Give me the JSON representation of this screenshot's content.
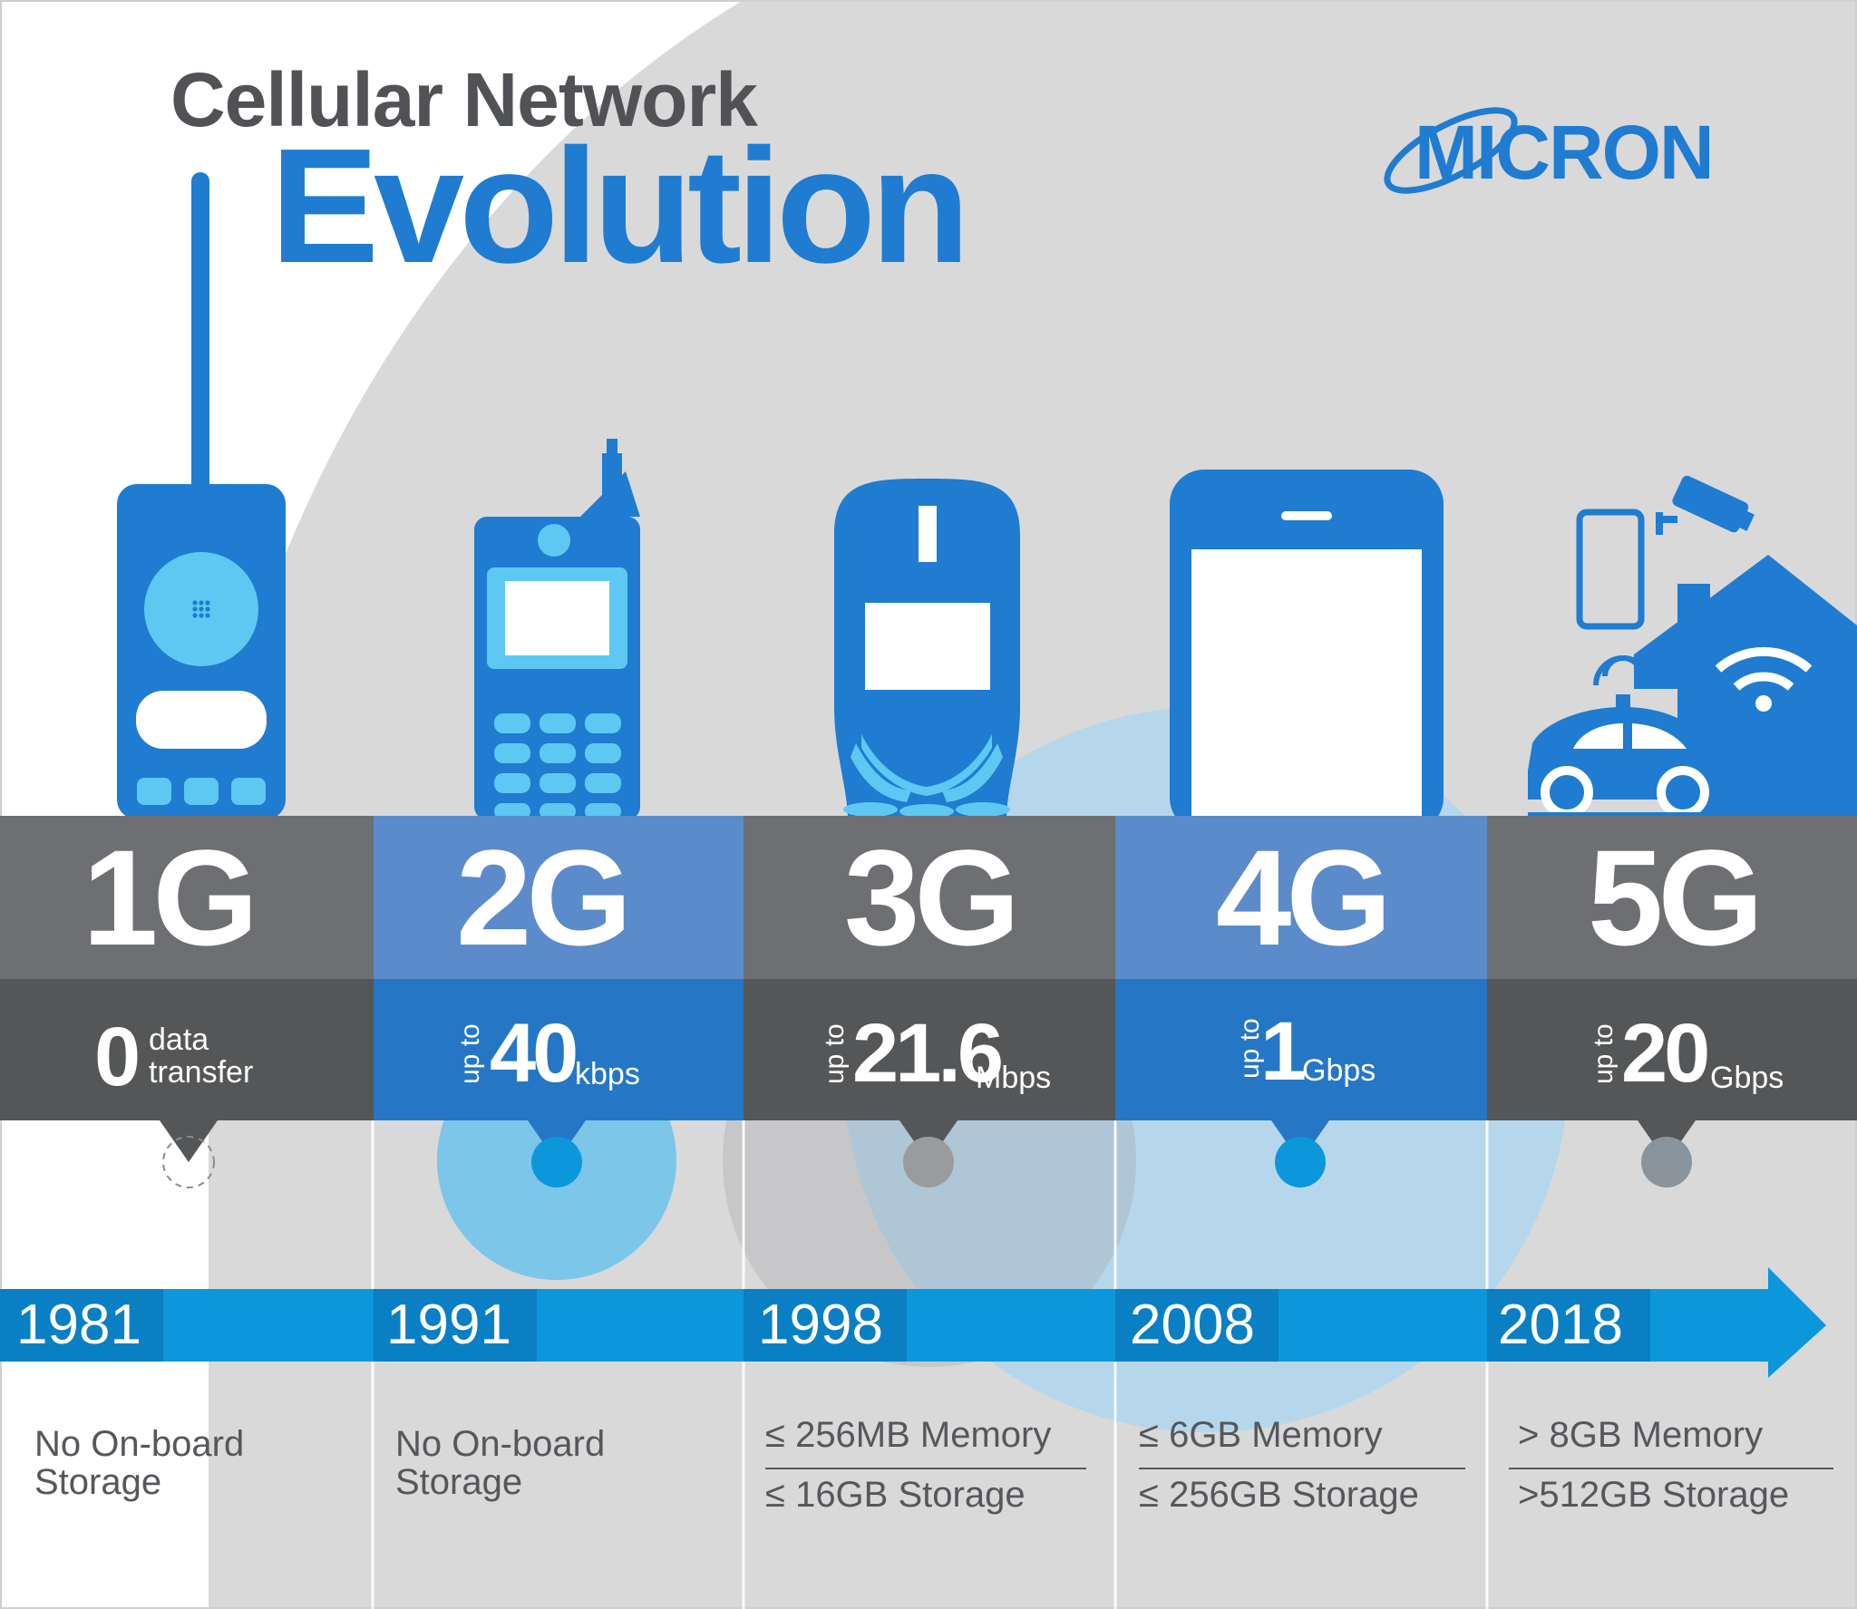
{
  "title": {
    "line1": "Cellular Network",
    "line2": "Evolution"
  },
  "logo": {
    "text": "MICRON",
    "color": "#1f7cd0"
  },
  "colors": {
    "blue_dark": "#1f7cd0",
    "blue_light": "#5ec8f2",
    "blue_timeline": "#0d97db",
    "gray_header": "#6e6f72",
    "gray_dark": "#555657",
    "background": "#d9d9da"
  },
  "generations": [
    {
      "id": "1G",
      "label": "1G",
      "speed_prefix": "",
      "speed_value": "0",
      "speed_unit_line1": "data",
      "speed_unit_line2": "transfer",
      "year": "1981",
      "storage_lines": [
        "No On-board",
        "Storage"
      ],
      "device_icon": "brick-phone-icon"
    },
    {
      "id": "2G",
      "label": "2G",
      "speed_prefix": "up to",
      "speed_value": "40",
      "speed_unit": "kbps",
      "year": "1991",
      "storage_lines": [
        "No On-board",
        "Storage"
      ],
      "device_icon": "flip-phone-icon"
    },
    {
      "id": "3G",
      "label": "3G",
      "speed_prefix": "up to",
      "speed_value": "21.6",
      "speed_unit": "Mbps",
      "year": "1998",
      "memory": "≤ 256MB Memory",
      "storage": "≤ 16GB Storage",
      "device_icon": "candybar-phone-icon"
    },
    {
      "id": "4G",
      "label": "4G",
      "speed_prefix": "up to",
      "speed_value": "1",
      "speed_unit": "Gbps",
      "year": "2008",
      "memory": "≤ 6GB Memory",
      "storage": "≤ 256GB Storage",
      "device_icon": "smartphone-icon"
    },
    {
      "id": "5G",
      "label": "5G",
      "speed_prefix": "up to",
      "speed_value": "20",
      "speed_unit": "Gbps",
      "year": "2018",
      "memory": "> 8GB Memory",
      "storage": ">512GB Storage",
      "device_icon": "iot-devices-icon"
    }
  ]
}
